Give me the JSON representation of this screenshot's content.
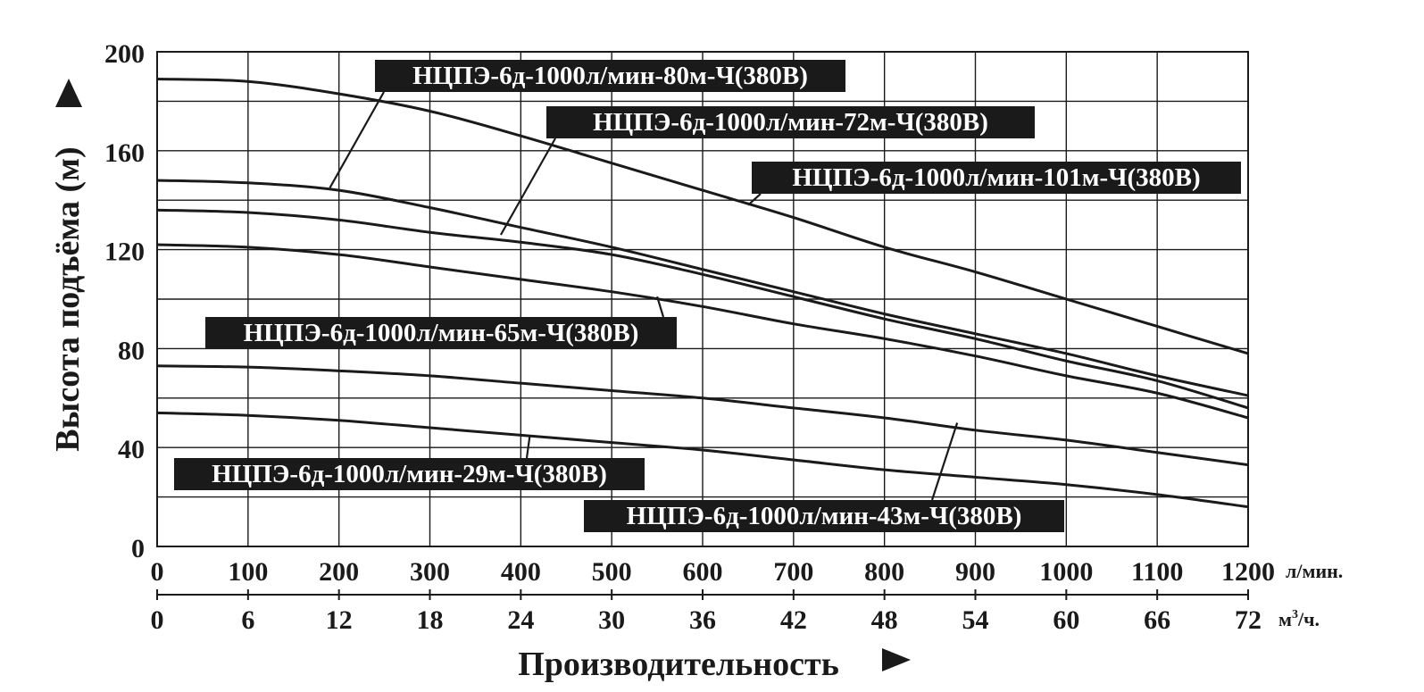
{
  "chart_data": {
    "type": "line",
    "xlabel": "Производительность",
    "ylabel": "Высота подъёма (м)",
    "x_unit": "л/мин.",
    "x2_unit_base": "м",
    "x2_unit_sup": "3",
    "x2_unit_tail": "/ч.",
    "xlim": [
      0,
      1200
    ],
    "ylim": [
      0,
      200
    ],
    "x_ticks": [
      "0",
      "100",
      "200",
      "300",
      "400",
      "500",
      "600",
      "700",
      "800",
      "900",
      "1000",
      "1100",
      "1200"
    ],
    "x2_ticks": [
      "0",
      "6",
      "12",
      "18",
      "24",
      "30",
      "36",
      "42",
      "48",
      "54",
      "60",
      "66",
      "72"
    ],
    "y_ticks": [
      "0",
      "40",
      "80",
      "120",
      "160",
      "200"
    ],
    "grid": true,
    "colors": {
      "line": "#1a1a1a",
      "grid": "#1a1a1a",
      "label_bg": "#1a1a1a",
      "label_text": "#ffffff"
    },
    "series": [
      {
        "name": "НЦПЭ-6д-1000л/мин-101м-Ч(380В)",
        "x": [
          0,
          100,
          200,
          300,
          400,
          500,
          600,
          700,
          800,
          900,
          1000,
          1100,
          1200
        ],
        "y": [
          189,
          188,
          183,
          176,
          166,
          155,
          144,
          133,
          121,
          111,
          100,
          89,
          78
        ]
      },
      {
        "name": "НЦПЭ-6д-1000л/мин-80м-Ч(380В)",
        "x": [
          0,
          100,
          200,
          300,
          400,
          500,
          600,
          700,
          800,
          900,
          1000,
          1100,
          1200
        ],
        "y": [
          148,
          147,
          144,
          137,
          129,
          121,
          112,
          103,
          94,
          86,
          78,
          69,
          61
        ]
      },
      {
        "name": "НЦПЭ-6д-1000л/мин-72м-Ч(380В)",
        "x": [
          0,
          100,
          200,
          300,
          400,
          500,
          600,
          700,
          800,
          900,
          1000,
          1100,
          1200
        ],
        "y": [
          136,
          135,
          132,
          127,
          123,
          118,
          110,
          101,
          92,
          84,
          75,
          67,
          56
        ]
      },
      {
        "name": "НЦПЭ-6д-1000л/мин-65м-Ч(380В)",
        "x": [
          0,
          100,
          200,
          300,
          400,
          500,
          600,
          700,
          800,
          900,
          1000,
          1100,
          1200
        ],
        "y": [
          122,
          121,
          118,
          113,
          108,
          103,
          97,
          90,
          84,
          77,
          69,
          62,
          52
        ]
      },
      {
        "name": "НЦПЭ-6д-1000л/мин-43м-Ч(380В)",
        "x": [
          0,
          100,
          200,
          300,
          400,
          500,
          600,
          700,
          800,
          900,
          1000,
          1100,
          1200
        ],
        "y": [
          73,
          72.5,
          71,
          69,
          66,
          63,
          60,
          56,
          52,
          47,
          43,
          38,
          33
        ]
      },
      {
        "name": "НЦПЭ-6д-1000л/мин-29м-Ч(380В)",
        "x": [
          0,
          100,
          200,
          300,
          400,
          500,
          600,
          700,
          800,
          900,
          1000,
          1100,
          1200
        ],
        "y": [
          54,
          53,
          51,
          48,
          45,
          42,
          39,
          35,
          31,
          28,
          25,
          21,
          16
        ]
      }
    ],
    "labels": [
      {
        "series": 1,
        "text": "НЦПЭ-6д-1000л/мин-80м-Ч(380В)",
        "anchor_x": 190,
        "anchor_y": 145
      },
      {
        "series": 2,
        "text": "НЦПЭ-6д-1000л/мин-72м-Ч(380В)",
        "anchor_x": 378,
        "anchor_y": 126
      },
      {
        "series": 0,
        "text": "НЦПЭ-6д-1000л/мин-101м-Ч(380В)",
        "anchor_x": 650,
        "anchor_y": 138
      },
      {
        "series": 3,
        "text": "НЦПЭ-6д-1000л/мин-65м-Ч(380В)",
        "anchor_x": 550,
        "anchor_y": 101
      },
      {
        "series": 5,
        "text": "НЦПЭ-6д-1000л/мин-29м-Ч(380В)",
        "anchor_x": 410,
        "anchor_y": 45
      },
      {
        "series": 4,
        "text": "НЦПЭ-6д-1000л/мин-43м-Ч(380В)",
        "anchor_x": 880,
        "anchor_y": 50
      }
    ]
  }
}
